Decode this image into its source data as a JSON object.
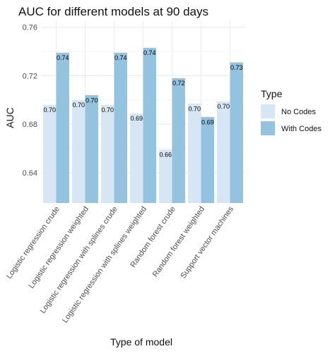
{
  "chart_data": {
    "type": "bar",
    "title": "AUC for different models at 90 days",
    "xlabel": "Type of model",
    "ylabel": "AUC",
    "ylim": [
      0.615,
      0.765
    ],
    "yticks": [
      0.64,
      0.68,
      0.72,
      0.76
    ],
    "ytick_labels": [
      "0.64",
      "0.68",
      "0.72",
      "0.76"
    ],
    "grid": true,
    "legend": {
      "title": "Type",
      "placement": "right"
    },
    "categories": [
      "Logistic regression crude",
      "Logistic regression weighted",
      "Logistic regression with splines crude",
      "Logistic regression with splines weighted",
      "Random forest crude",
      "Random forest weighted",
      "Support vector machines"
    ],
    "series": [
      {
        "name": "No Codes",
        "color": "#d6e6f4",
        "values": [
          0.696,
          0.7,
          0.696,
          0.689,
          0.659,
          0.697,
          0.699
        ],
        "labels": [
          "0.70",
          "0.70",
          "0.70",
          "0.69",
          "0.66",
          "0.70",
          "0.70"
        ]
      },
      {
        "name": "With Codes",
        "color": "#94c3df",
        "values": [
          0.739,
          0.704,
          0.739,
          0.743,
          0.718,
          0.686,
          0.731
        ],
        "labels": [
          "0.74",
          "0.70",
          "0.74",
          "0.74",
          "0.72",
          "0.69",
          "0.73"
        ]
      }
    ]
  }
}
